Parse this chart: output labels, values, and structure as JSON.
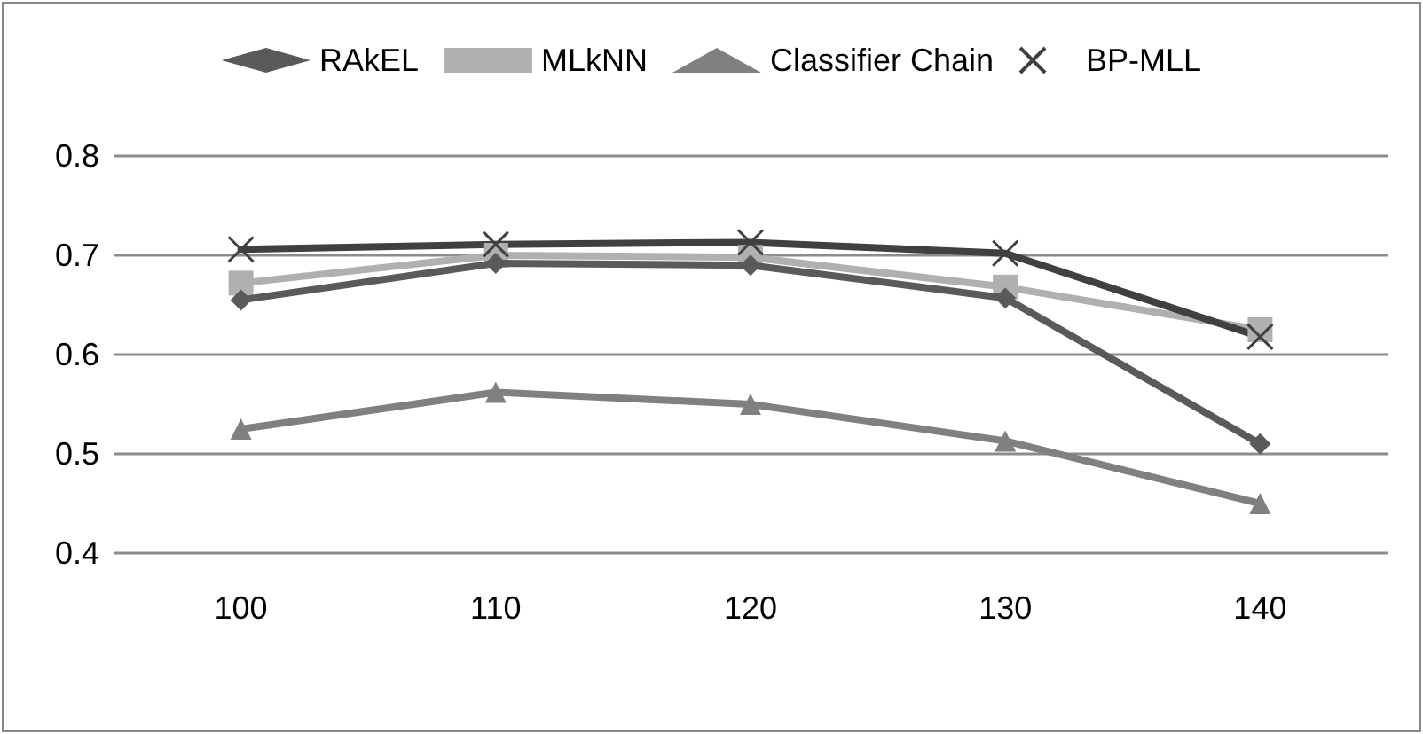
{
  "chart_data": {
    "type": "line",
    "categories": [
      "100",
      "110",
      "120",
      "130",
      "140"
    ],
    "series": [
      {
        "name": "RAkEL",
        "color": "#5a5a5a",
        "marker": "diamond",
        "values": [
          0.655,
          0.692,
          0.69,
          0.657,
          0.51
        ]
      },
      {
        "name": "MLkNN",
        "color": "#b0b0b0",
        "marker": "square",
        "values": [
          0.672,
          0.7,
          0.698,
          0.668,
          0.625
        ]
      },
      {
        "name": "Classifier Chain",
        "color": "#808080",
        "marker": "triangle",
        "values": [
          0.525,
          0.562,
          0.55,
          0.513,
          0.45
        ]
      },
      {
        "name": "BP-MLL",
        "color": "#404040",
        "marker": "cross",
        "values": [
          0.706,
          0.711,
          0.713,
          0.702,
          0.618
        ]
      }
    ],
    "ylim": [
      0.4,
      0.8
    ],
    "yticks": [
      0.4,
      0.5,
      0.6,
      0.7,
      0.8
    ],
    "grid": "y",
    "legend": "top",
    "line_style": "solid"
  }
}
